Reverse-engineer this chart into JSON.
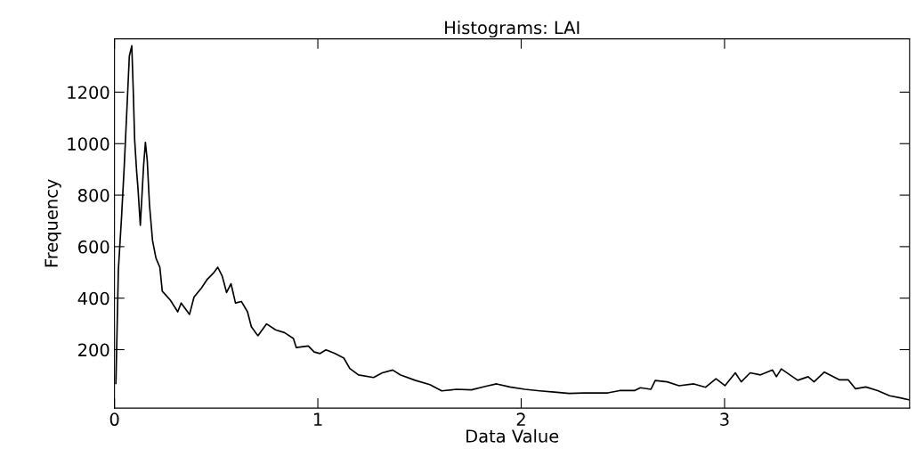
{
  "chart_data": {
    "type": "line",
    "title": "Histograms: LAI",
    "xlabel": "Data Value",
    "ylabel": "Frequency",
    "x": [
      0.007,
      0.019,
      0.034,
      0.048,
      0.063,
      0.073,
      0.085,
      0.092,
      0.099,
      0.109,
      0.115,
      0.127,
      0.143,
      0.152,
      0.161,
      0.172,
      0.187,
      0.204,
      0.223,
      0.235,
      0.274,
      0.311,
      0.328,
      0.369,
      0.391,
      0.427,
      0.457,
      0.486,
      0.508,
      0.53,
      0.551,
      0.573,
      0.595,
      0.624,
      0.654,
      0.673,
      0.705,
      0.748,
      0.792,
      0.836,
      0.88,
      0.894,
      0.953,
      0.982,
      1.011,
      1.04,
      1.084,
      1.128,
      1.157,
      1.2,
      1.274,
      1.317,
      1.368,
      1.405,
      1.478,
      1.551,
      1.609,
      1.682,
      1.755,
      1.828,
      1.879,
      1.944,
      2.018,
      2.091,
      2.163,
      2.236,
      2.309,
      2.426,
      2.484,
      2.557,
      2.586,
      2.638,
      2.659,
      2.718,
      2.776,
      2.849,
      2.907,
      2.958,
      3.002,
      3.053,
      3.082,
      3.126,
      3.177,
      3.236,
      3.255,
      3.279,
      3.36,
      3.411,
      3.44,
      3.491,
      3.564,
      3.608,
      3.644,
      3.695,
      3.753,
      3.812,
      3.87,
      3.908
    ],
    "series": [
      {
        "color": "#000000",
        "values": [
          69,
          510,
          705,
          913,
          1168,
          1340,
          1380,
          1213,
          1017,
          890,
          832,
          683,
          913,
          1005,
          936,
          763,
          624,
          555,
          520,
          427,
          393,
          347,
          381,
          337,
          404,
          439,
          474,
          497,
          520,
          485,
          422,
          456,
          381,
          387,
          347,
          289,
          254,
          300,
          277,
          266,
          243,
          208,
          214,
          191,
          185,
          199,
          185,
          167,
          127,
          102,
          92,
          110,
          121,
          102,
          81,
          64,
          40,
          46,
          44,
          58,
          67,
          55,
          46,
          40,
          35,
          30,
          32,
          32,
          41,
          41,
          52,
          46,
          80,
          75,
          60,
          67,
          54,
          87,
          60,
          110,
          75,
          110,
          102,
          121,
          95,
          125,
          81,
          95,
          75,
          113,
          83,
          83,
          48,
          55,
          41,
          21,
          12,
          5
        ]
      }
    ],
    "xlim": [
      0,
      3.91
    ],
    "xticks": [
      0,
      1,
      2,
      3
    ],
    "ylim": [
      -27,
      1407
    ],
    "yticks": [
      200,
      400,
      600,
      800,
      1000,
      1200
    ],
    "grid": false,
    "marker": "none",
    "line_style": "solid"
  }
}
